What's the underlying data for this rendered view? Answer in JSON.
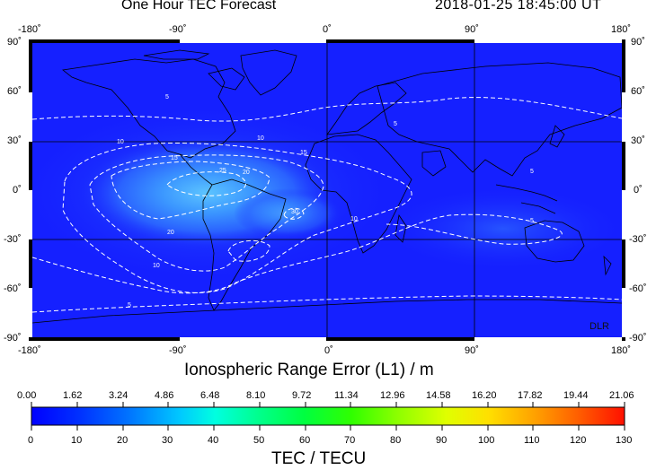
{
  "header": {
    "title": "One Hour TEC Forecast",
    "timestamp": "2018-01-25  18:45:00 UT"
  },
  "map": {
    "lon_ticks": [
      "-180˚",
      "-90˚",
      "0˚",
      "90˚",
      "180˚"
    ],
    "lat_ticks": [
      "90˚",
      "60˚",
      "30˚",
      "0˚",
      "-30˚",
      "-60˚",
      "-90˚"
    ],
    "contour_labels": [
      "5",
      "10",
      "15",
      "20",
      "25",
      "30"
    ],
    "credit": "DLR",
    "colors": {
      "background": "#1520ff",
      "enhancement": "#2a8cff",
      "contour": "#ffffff",
      "coast": "#000000"
    }
  },
  "range_error": {
    "label": "Ionospheric Range Error (L1) / m",
    "ticks": [
      "0.00",
      "1.62",
      "3.24",
      "4.86",
      "6.48",
      "8.10",
      "9.72",
      "11.34",
      "12.96",
      "14.58",
      "16.20",
      "17.82",
      "19.44",
      "21.06"
    ]
  },
  "tec": {
    "label": "TEC / TECU",
    "ticks": [
      "0",
      "10",
      "20",
      "30",
      "40",
      "50",
      "60",
      "70",
      "80",
      "90",
      "100",
      "110",
      "120",
      "130"
    ],
    "range": [
      0,
      130
    ]
  }
}
